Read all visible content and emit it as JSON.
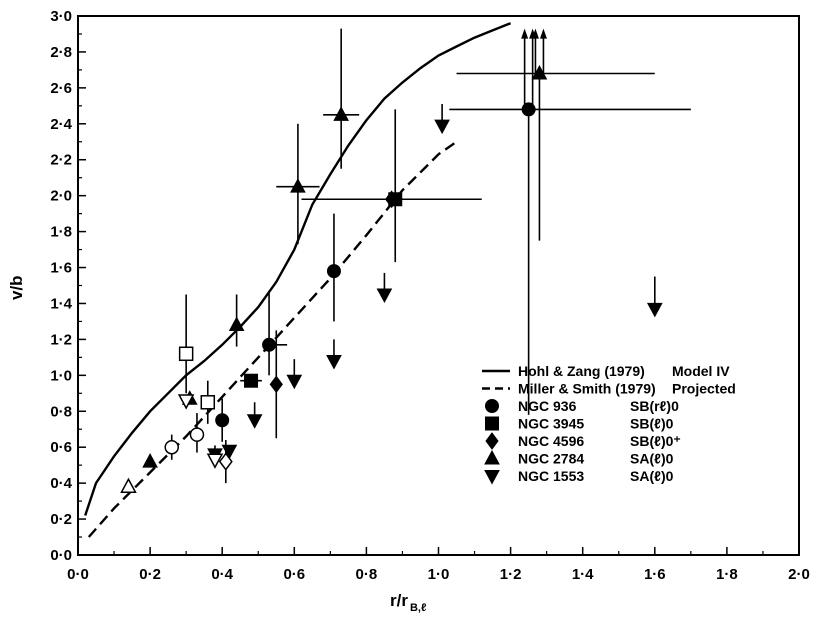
{
  "chart_data": {
    "type": "scatter",
    "title": "",
    "xlabel": "r/r",
    "xlabel_sub": "B,ℓ",
    "ylabel": "v/b",
    "xlim": [
      0,
      2.0
    ],
    "ylim": [
      0,
      3.0
    ],
    "x_tick_labels": [
      "0·0",
      "0·2",
      "0·4",
      "0·6",
      "0·8",
      "1·0",
      "1·2",
      "1·4",
      "1·6",
      "1·8",
      "2·0"
    ],
    "y_tick_labels": [
      "0·0",
      "0·2",
      "0·4",
      "0·6",
      "0·8",
      "1·0",
      "1·2",
      "1·4",
      "1·6",
      "1·8",
      "2·0",
      "2·2",
      "2·4",
      "2·6",
      "2·8",
      "3·0"
    ],
    "legend_position": "bottom-right",
    "lines": [
      {
        "name": "Hohl & Zang (1979) Model IV",
        "style": "solid",
        "x": [
          0.02,
          0.05,
          0.1,
          0.15,
          0.2,
          0.25,
          0.3,
          0.35,
          0.4,
          0.45,
          0.5,
          0.55,
          0.6,
          0.65,
          0.7,
          0.75,
          0.8,
          0.85,
          0.9,
          0.95,
          1.0,
          1.05,
          1.1,
          1.15,
          1.2
        ],
        "y": [
          0.22,
          0.4,
          0.55,
          0.68,
          0.8,
          0.9,
          1.0,
          1.08,
          1.17,
          1.27,
          1.38,
          1.52,
          1.7,
          1.95,
          2.12,
          2.28,
          2.42,
          2.54,
          2.63,
          2.71,
          2.78,
          2.83,
          2.88,
          2.92,
          2.96
        ]
      },
      {
        "name": "Miller & Smith (1979) Projected",
        "style": "dashed",
        "x": [
          0.03,
          0.1,
          0.2,
          0.3,
          0.4,
          0.5,
          0.6,
          0.7,
          0.8,
          0.9,
          1.0,
          1.05
        ],
        "y": [
          0.1,
          0.26,
          0.46,
          0.66,
          0.88,
          1.1,
          1.32,
          1.54,
          1.78,
          2.03,
          2.23,
          2.3
        ]
      }
    ],
    "series": [
      {
        "name": "NGC 936",
        "type": "SB(rℓ)0",
        "marker": "circle",
        "points": [
          {
            "x": 0.4,
            "y": 0.75,
            "yerr": [
              0.12,
              0.12
            ]
          },
          {
            "x": 0.53,
            "y": 1.17,
            "yerr": [
              0.17,
              0.3
            ],
            "xerr": [
              0.0,
              0.05
            ]
          },
          {
            "x": 0.71,
            "y": 1.58,
            "yerr": [
              0.28,
              0.32
            ]
          },
          {
            "x": 1.25,
            "y": 2.48,
            "yerr": [
              1.7,
              0.0
            ],
            "xerr": [
              0.22,
              0.45
            ],
            "arrow": "up"
          },
          {
            "x": 0.26,
            "y": 0.6,
            "yerr": [
              0.07,
              0.07
            ],
            "open": true
          },
          {
            "x": 0.33,
            "y": 0.67,
            "yerr": [
              0.1,
              0.12
            ],
            "open": true
          }
        ]
      },
      {
        "name": "NGC 3945",
        "type": "SB(ℓ)0",
        "marker": "square",
        "points": [
          {
            "x": 0.48,
            "y": 0.97,
            "xerr": [
              0.03,
              0.03
            ]
          },
          {
            "x": 0.88,
            "y": 1.98,
            "yerr": [
              0.35,
              0.5
            ],
            "xerr": [
              0.05,
              0.05
            ]
          },
          {
            "x": 0.3,
            "y": 1.12,
            "yerr": [
              0.22,
              0.33
            ],
            "open": true
          },
          {
            "x": 0.36,
            "y": 0.85,
            "yerr": [
              0.12,
              0.12
            ],
            "open": true
          }
        ]
      },
      {
        "name": "NGC 4596",
        "type": "SB(ℓ)0⁺",
        "marker": "diamond",
        "points": [
          {
            "x": 0.55,
            "y": 0.95,
            "yerr": [
              0.3,
              0.3
            ]
          },
          {
            "x": 0.87,
            "y": 1.98,
            "xerr": [
              0.25,
              0.25
            ]
          },
          {
            "x": 0.41,
            "y": 0.52,
            "yerr": [
              0.12,
              0.12
            ],
            "open": true
          }
        ]
      },
      {
        "name": "NGC 2784",
        "type": "SA(ℓ)0",
        "marker": "triangle-up",
        "points": [
          {
            "x": 0.2,
            "y": 0.52
          },
          {
            "x": 0.31,
            "y": 0.87
          },
          {
            "x": 0.44,
            "y": 1.28,
            "yerr": [
              0.12,
              0.17
            ]
          },
          {
            "x": 0.61,
            "y": 2.05,
            "yerr": [
              0.32,
              0.35
            ],
            "xerr": [
              0.06,
              0.06
            ]
          },
          {
            "x": 0.73,
            "y": 2.45,
            "yerr": [
              0.3,
              0.48
            ],
            "xerr": [
              0.05,
              0.05
            ]
          },
          {
            "x": 1.28,
            "y": 2.68,
            "yerr": [
              0.93,
              0.0
            ],
            "xerr": [
              0.23,
              0.32
            ],
            "arrow": "up"
          },
          {
            "x": 0.14,
            "y": 0.38,
            "open": true
          }
        ]
      },
      {
        "name": "NGC 1553",
        "type": "SA(ℓ)0",
        "marker": "triangle-down",
        "points": [
          {
            "x": 0.71,
            "y": 1.08,
            "yerr": [
              0.0,
              0.12
            ]
          },
          {
            "x": 0.38,
            "y": 0.56,
            "yerr": [
              0.05,
              0.05
            ]
          },
          {
            "x": 0.42,
            "y": 0.58,
            "yerr": [
              0.0,
              0.0
            ]
          },
          {
            "x": 0.49,
            "y": 0.75,
            "yerr": [
              0.0,
              0.1
            ]
          },
          {
            "x": 0.6,
            "y": 0.97,
            "yerr": [
              0.0,
              0.12
            ]
          },
          {
            "x": 0.85,
            "y": 1.45,
            "yerr": [
              0.0,
              0.12
            ]
          },
          {
            "x": 1.01,
            "y": 2.39,
            "yerr": [
              0.0,
              0.12
            ]
          },
          {
            "x": 1.6,
            "y": 1.37,
            "yerr": [
              0.0,
              0.18
            ]
          },
          {
            "x": 0.3,
            "y": 0.86,
            "open": true
          },
          {
            "x": 0.38,
            "y": 0.53,
            "open": true
          }
        ]
      }
    ],
    "legend": [
      {
        "label": "Hohl & Zang (1979)",
        "extra": "Model IV",
        "kind": "solid"
      },
      {
        "label": "Miller & Smith (1979)",
        "extra": "Projected",
        "kind": "dashed"
      },
      {
        "label": "NGC 936",
        "extra": "SB(rℓ)0",
        "kind": "circle"
      },
      {
        "label": "NGC 3945",
        "extra": "SB(ℓ)0",
        "kind": "square"
      },
      {
        "label": "NGC 4596",
        "extra": "SB(ℓ)0⁺",
        "kind": "diamond"
      },
      {
        "label": "NGC 2784",
        "extra": "SA(ℓ)0",
        "kind": "triangle-up"
      },
      {
        "label": "NGC 1553",
        "extra": "SA(ℓ)0",
        "kind": "triangle-down"
      }
    ],
    "colors": {
      "ink": "#000000",
      "background": "#ffffff"
    }
  }
}
